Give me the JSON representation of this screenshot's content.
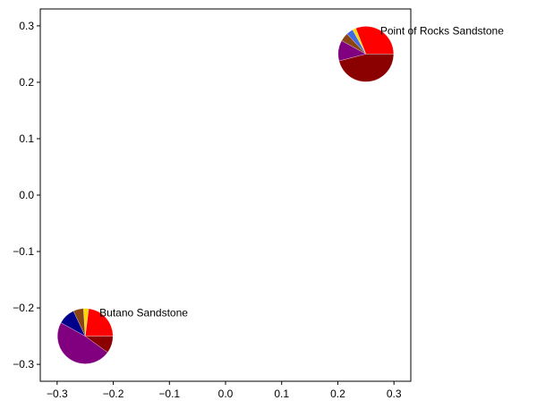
{
  "chart_data": {
    "type": "scatter",
    "title": "",
    "xlabel": "",
    "ylabel": "",
    "xlim": [
      -0.33,
      0.33
    ],
    "ylim": [
      -0.33,
      0.33
    ],
    "xticks": [
      -0.3,
      -0.2,
      -0.1,
      0.0,
      0.1,
      0.2,
      0.3
    ],
    "yticks": [
      -0.3,
      -0.2,
      -0.1,
      0.0,
      0.1,
      0.2,
      0.3
    ],
    "xtick_labels": [
      "−0.3",
      "−0.2",
      "−0.1",
      "0.0",
      "0.1",
      "0.2",
      "0.3"
    ],
    "ytick_labels": [
      "−0.3",
      "−0.2",
      "−0.1",
      "0.0",
      "0.1",
      "0.2",
      "0.3"
    ],
    "grid": false,
    "marker": "pie",
    "points": [
      {
        "label": "Point of Rocks Sandstone",
        "x": 0.25,
        "y": 0.25,
        "slices": [
          {
            "color": "#ff0000",
            "value": 31
          },
          {
            "color": "#ffd700",
            "value": 2
          },
          {
            "color": "#4169e1",
            "value": 4
          },
          {
            "color": "#8b4513",
            "value": 5
          },
          {
            "color": "#800080",
            "value": 12
          },
          {
            "color": "#8b0000",
            "value": 46
          }
        ]
      },
      {
        "label": "Butano Sandstone",
        "x": -0.25,
        "y": -0.25,
        "slices": [
          {
            "color": "#ff0000",
            "value": 23
          },
          {
            "color": "#ffd700",
            "value": 3
          },
          {
            "color": "#8b4513",
            "value": 6
          },
          {
            "color": "#00008b",
            "value": 10
          },
          {
            "color": "#800080",
            "value": 48
          },
          {
            "color": "#8b0000",
            "value": 10
          }
        ]
      }
    ]
  }
}
